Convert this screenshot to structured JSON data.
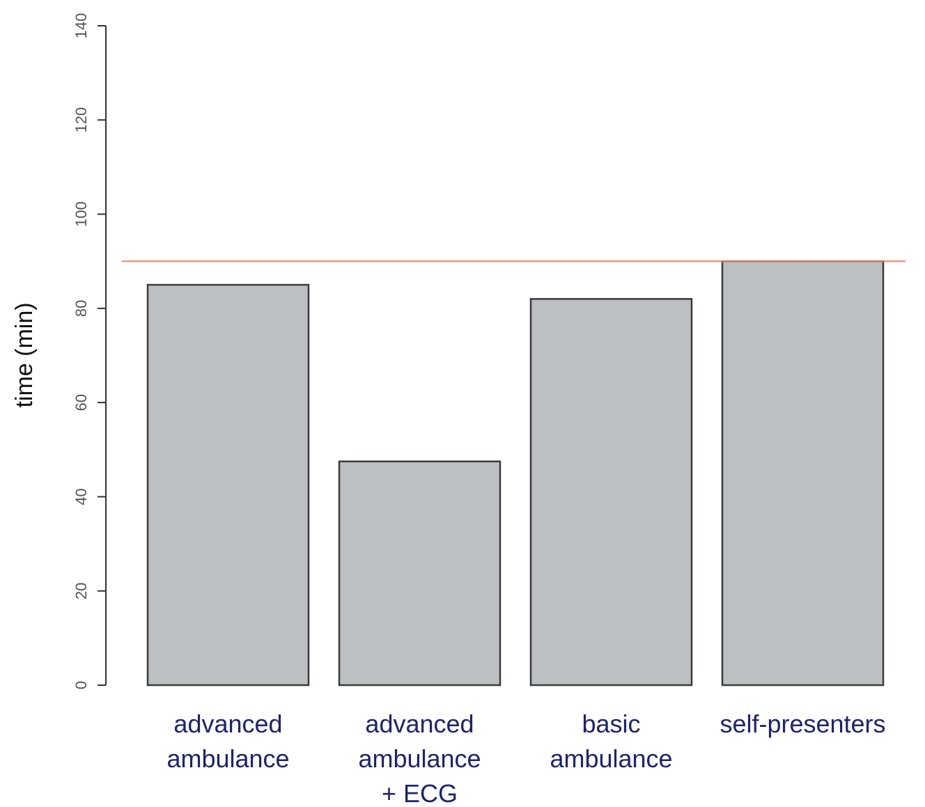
{
  "chart_data": {
    "type": "bar",
    "ylabel": "time (min)",
    "categories": [
      "advanced\nambulance",
      "advanced\nambulance\n+ ECG",
      "basic\nambulance",
      "self-presenters"
    ],
    "values": [
      85,
      47.5,
      82,
      90
    ],
    "color": "#bcc0c2",
    "reference_line": {
      "value": 90,
      "color": "#e8836a"
    },
    "ylim": [
      0,
      140
    ],
    "yticks": [
      0,
      20,
      40,
      60,
      80,
      100,
      120,
      140
    ],
    "grid": false
  }
}
